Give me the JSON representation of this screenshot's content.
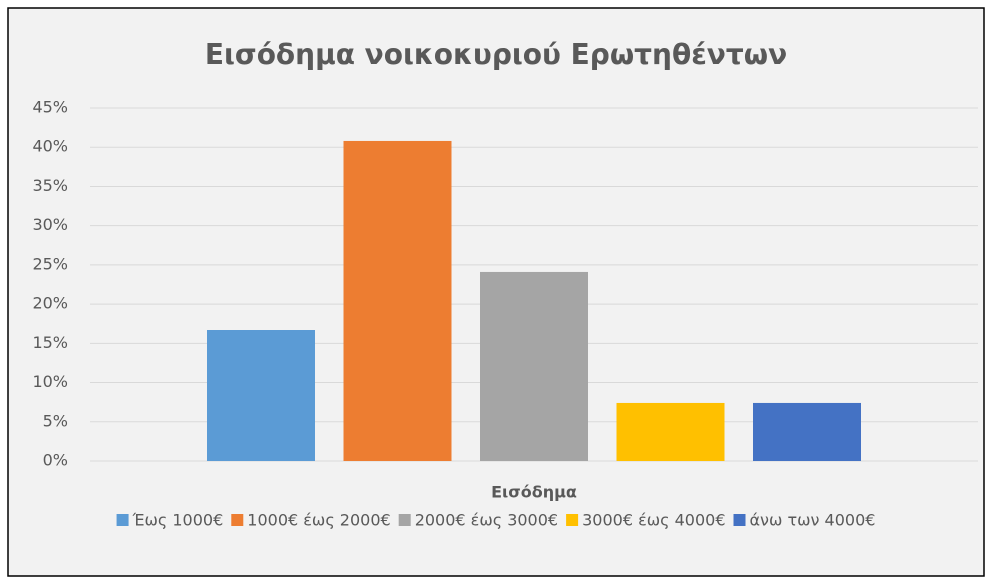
{
  "chart_data": {
    "type": "bar",
    "title": "Εισόδημα νοικοκυριού Ερωτηθέντων",
    "categories": [
      "Εισόδημα"
    ],
    "series": [
      {
        "name": "Έως 1000€",
        "color": "#5b9bd5",
        "values": [
          16.7
        ]
      },
      {
        "name": "1000€ έως 2000€",
        "color": "#ed7d31",
        "values": [
          40.8
        ]
      },
      {
        "name": "2000€ έως 3000€",
        "color": "#a5a5a5",
        "values": [
          24.1
        ]
      },
      {
        "name": "3000€ έως 4000€",
        "color": "#ffc000",
        "values": [
          7.4
        ]
      },
      {
        "name": "άνω των 4000€",
        "color": "#4472c4",
        "values": [
          7.4
        ]
      }
    ],
    "ylim": [
      0,
      45
    ],
    "yticks": [
      {
        "value": 0,
        "label": "0%"
      },
      {
        "value": 5,
        "label": "5%"
      },
      {
        "value": 10,
        "label": "10%"
      },
      {
        "value": 15,
        "label": "15%"
      },
      {
        "value": 20,
        "label": "20%"
      },
      {
        "value": 25,
        "label": "25%"
      },
      {
        "value": 30,
        "label": "30%"
      },
      {
        "value": 35,
        "label": "35%"
      },
      {
        "value": 40,
        "label": "40%"
      },
      {
        "value": 45,
        "label": "45%"
      }
    ],
    "grid": true,
    "legend": "bottom"
  }
}
